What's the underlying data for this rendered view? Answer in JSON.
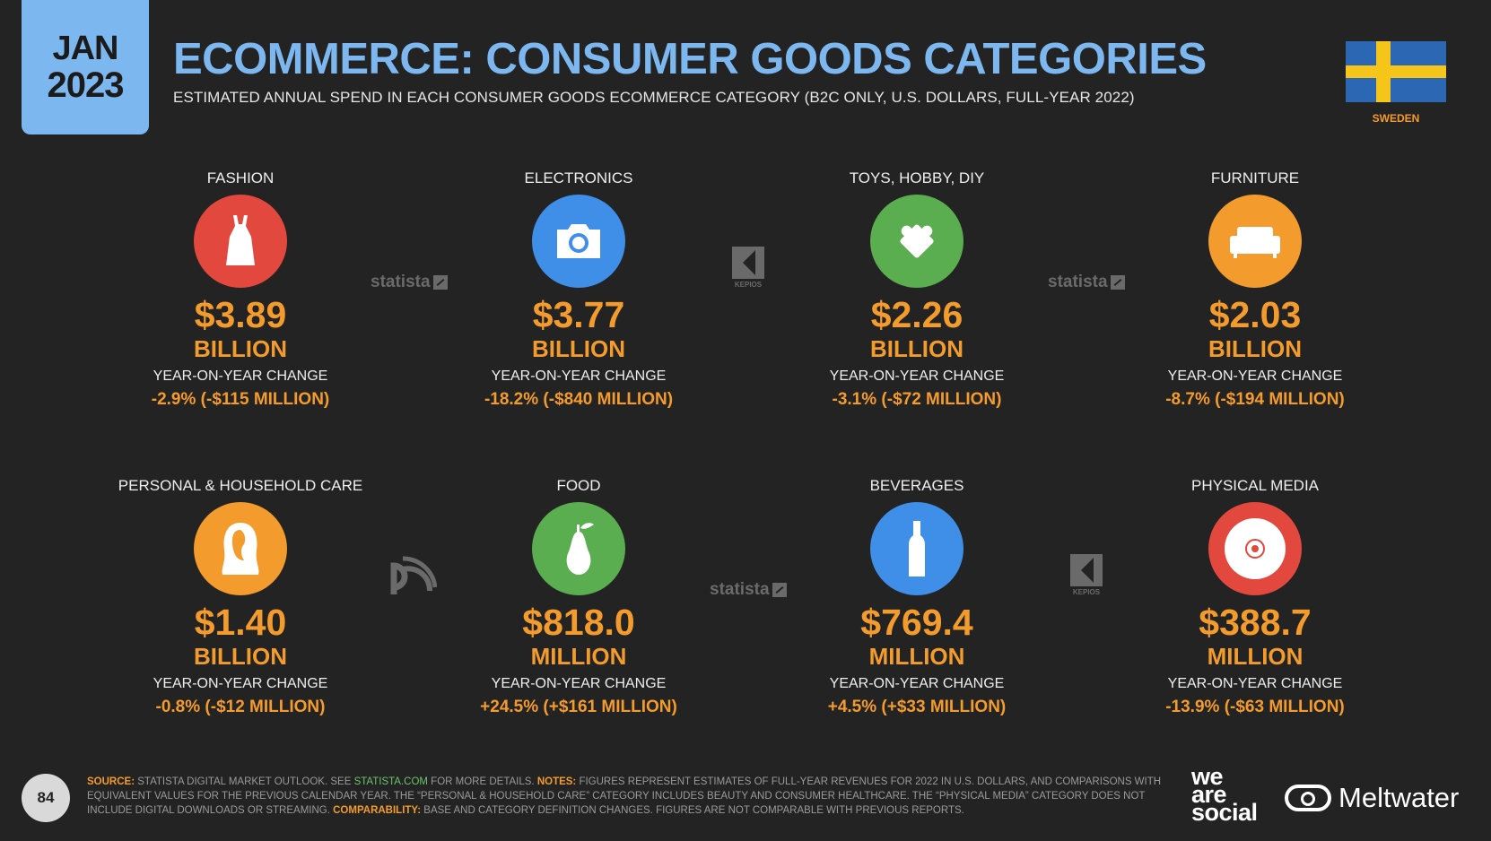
{
  "header": {
    "month": "JAN",
    "year": "2023",
    "title": "ECOMMERCE: CONSUMER GOODS CATEGORIES",
    "subtitle": "ESTIMATED ANNUAL SPEND IN EACH CONSUMER GOODS ECOMMERCE CATEGORY (B2C ONLY, U.S. DOLLARS, FULL-YEAR 2022)",
    "country": "SWEDEN"
  },
  "yoy_label": "YEAR-ON-YEAR CHANGE",
  "categories": [
    {
      "name": "FASHION",
      "value": "$3.89",
      "unit": "BILLION",
      "change": "-2.9% (-$115 MILLION)",
      "color": "#e2483e",
      "icon": "dress-icon"
    },
    {
      "name": "ELECTRONICS",
      "value": "$3.77",
      "unit": "BILLION",
      "change": "-18.2% (-$840 MILLION)",
      "color": "#3f8ee8",
      "icon": "camera-icon"
    },
    {
      "name": "TOYS, HOBBY, DIY",
      "value": "$2.26",
      "unit": "BILLION",
      "change": "-3.1% (-$72 MILLION)",
      "color": "#5aae4f",
      "icon": "puzzle-icon"
    },
    {
      "name": "FURNITURE",
      "value": "$2.03",
      "unit": "BILLION",
      "change": "-8.7% (-$194 MILLION)",
      "color": "#f39b2c",
      "icon": "sofa-icon"
    },
    {
      "name": "PERSONAL & HOUSEHOLD CARE",
      "value": "$1.40",
      "unit": "BILLION",
      "change": "-0.8% (-$12 MILLION)",
      "color": "#f39b2c",
      "icon": "face-icon"
    },
    {
      "name": "FOOD",
      "value": "$818.0",
      "unit": "MILLION",
      "change": "+24.5% (+$161 MILLION)",
      "color": "#5aae4f",
      "icon": "pear-icon"
    },
    {
      "name": "BEVERAGES",
      "value": "$769.4",
      "unit": "MILLION",
      "change": "+4.5% (+$33 MILLION)",
      "color": "#3f8ee8",
      "icon": "bottle-icon"
    },
    {
      "name": "PHYSICAL MEDIA",
      "value": "$388.7",
      "unit": "MILLION",
      "change": "-13.9% (-$63 MILLION)",
      "color": "#e2483e",
      "icon": "disc-icon"
    }
  ],
  "watermarks": {
    "statista": "statista",
    "kepios": "KEPIOS"
  },
  "footer": {
    "page": "84",
    "source_label": "SOURCE:",
    "source_text": " STATISTA DIGITAL MARKET OUTLOOK. SEE ",
    "source_link": "STATISTA.COM",
    "source_after": " FOR MORE DETAILS. ",
    "notes_label": "NOTES:",
    "notes_text": " FIGURES REPRESENT ESTIMATES OF FULL-YEAR REVENUES FOR 2022 IN U.S. DOLLARS, AND COMPARISONS WITH EQUIVALENT VALUES FOR THE PREVIOUS CALENDAR YEAR. THE “PERSONAL & HOUSEHOLD CARE” CATEGORY INCLUDES BEAUTY AND CONSUMER HEALTHCARE. THE “PHYSICAL MEDIA” CATEGORY DOES NOT INCLUDE DIGITAL DOWNLOADS OR STREAMING. ",
    "comp_label": "COMPARABILITY:",
    "comp_text": " BASE AND CATEGORY DEFINITION CHANGES. FIGURES ARE NOT COMPARABLE WITH PREVIOUS REPORTS.",
    "brand1": [
      "we",
      "are",
      "social"
    ],
    "brand2": "Meltwater"
  }
}
